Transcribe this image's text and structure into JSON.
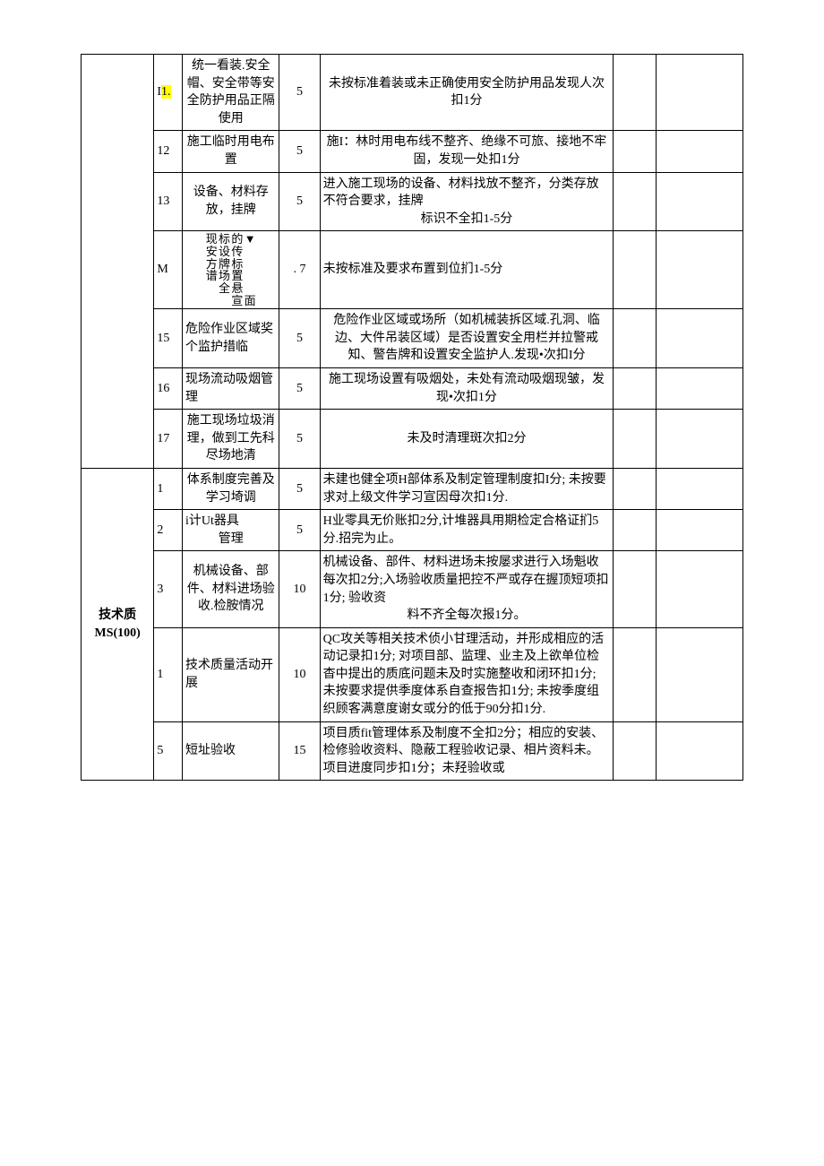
{
  "table": {
    "border_color": "#000000",
    "background_color": "#ffffff",
    "font_size_pt": 10.5,
    "highlight_color": "#ffff00",
    "col_widths_pct": [
      10,
      4,
      13,
      6,
      40,
      6,
      12
    ],
    "section1": {
      "rows": [
        {
          "num": "I1.",
          "num_highlight": true,
          "item": "统一看装.安全帽、安全带等安全防护用品正隔使用",
          "score": "5",
          "criteria": "未按标准着装或未正确使用安全防护用品发现人次扣1分",
          "criteria_align": "center"
        },
        {
          "num": "12",
          "item": "施工临时用电布置",
          "score": "5",
          "criteria": "施I：林时用电布线不整齐、绝缘不可旅、接地不牢固，发现一处扣1分",
          "criteria_align": "center"
        },
        {
          "num": "13",
          "item": "设备、材料存放，挂牌",
          "score": "5",
          "criteria": "进入施工现场的设备、材料找放不整齐，分类存放不符合要求，挂牌标识不全扣1-5分",
          "criteria_align": "left"
        },
        {
          "num": "M",
          "item_cols": [
            "现安方谱",
            "标设牌场全",
            "的▼传标置悬宣",
            "",
            "面"
          ],
          "score": ". 7",
          "criteria": "未按标准及要求布置到位扪1-5分",
          "criteria_align": "left"
        },
        {
          "num": "15",
          "item": "危险作业区域奖个监护措临",
          "score": "5",
          "criteria": "危险作业区域或场所（如机械装拆区域.孔洞、临边、大件吊装区域）是否设置安全用栏并拉警戒知、警告牌和设置安全监护人.发现•次扣I分",
          "criteria_align": "center"
        },
        {
          "num": "16",
          "item": "现场流动吸烟管理",
          "score": "5",
          "criteria": "施工现场设置有吸烟处，未处有流动吸烟现皱，发现•次扣1分",
          "criteria_align": "center"
        },
        {
          "num": "17",
          "item": "施工现场垃圾消理，做到工先科尽场地清",
          "score": "5",
          "criteria": "未及时清理斑次扣2分",
          "criteria_align": "center"
        }
      ]
    },
    "section2": {
      "category": "技术质MS(100)",
      "rows": [
        {
          "num": "1",
          "item": "体系制度完善及学习埼调",
          "score": "5",
          "criteria": "未建也健全项H部体系及制定管理制度扣I分; 未按要求对上级文件学习宣因母次扣1分.",
          "criteria_align": "left"
        },
        {
          "num": "2",
          "item": "i计Ut器具管理",
          "score": "5",
          "criteria": "H业零具无价账扣2分,计堆器具用期检定合格证扪5分.招完为止。",
          "criteria_align": "left"
        },
        {
          "num": "3",
          "item": "机械设备、部件、材料进场验收.检胺情况",
          "score": "10",
          "criteria": "机械设备、部件、材料进场未按屡求进行入场魁收每次扣2分;入场验收质量把控不严或存在握顶短项扣1分; 验收资料不齐全每次报1分。",
          "criteria_align": "left"
        },
        {
          "num": "1",
          "item": "技术质量活动开展",
          "score": "10",
          "criteria": "QC攻关等相关技术侦小甘理活动，并形成相应的活动记录扣1分; 对项目部、监理、业主及上欲单位检杳中提出的质底问题未及时实施整收和闭环扣1分; 未按要求提供季度体系自查报告扣1分; 未按季度组织顾客满意度谢女或分的低于90分扣1分.",
          "criteria_align": "left"
        },
        {
          "num": "5",
          "item": "短址验收",
          "score": "15",
          "criteria": "项目质fit管理体系及制度不全扣2分；相应的安装、检修验收资料、隐蔽工程验收记录、相片资料未。项目进度同步扣1分；未羟验收或",
          "criteria_align": "left"
        }
      ]
    }
  }
}
